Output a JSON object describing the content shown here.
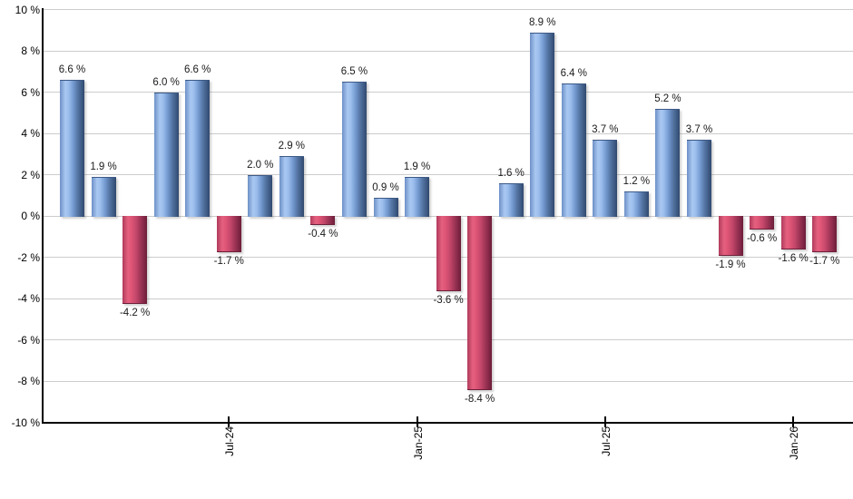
{
  "chart_data": {
    "type": "bar",
    "title": "",
    "xlabel": "",
    "ylabel": "",
    "ylim": [
      -10,
      10
    ],
    "y_step": 2,
    "grid": true,
    "legend": "none",
    "values": [
      6.6,
      1.9,
      -4.2,
      6.0,
      6.6,
      -1.7,
      2.0,
      2.9,
      -0.4,
      6.5,
      0.9,
      1.9,
      -3.6,
      -8.4,
      1.6,
      8.9,
      6.4,
      3.7,
      1.2,
      5.2,
      3.7,
      -1.9,
      -0.6,
      -1.6,
      -1.7
    ],
    "value_labels": [
      "6.6 %",
      "1.9 %",
      "-4.2 %",
      "6.0 %",
      "6.6 %",
      "-1.7 %",
      "2.0 %",
      "2.9 %",
      "-0.4 %",
      "6.5 %",
      "0.9 %",
      "1.9 %",
      "-3.6 %",
      "-8.4 %",
      "1.6 %",
      "8.9 %",
      "6.4 %",
      "3.7 %",
      "1.2 %",
      "5.2 %",
      "3.7 %",
      "-1.9 %",
      "-0.6 %",
      "-1.6 %",
      "-1.7 %"
    ],
    "x_tick_labels": [
      {
        "index": 5,
        "label": "Jul-24"
      },
      {
        "index": 11,
        "label": "Jan-25"
      },
      {
        "index": 17,
        "label": "Jul-25"
      },
      {
        "index": 23,
        "label": "Jan-26"
      }
    ],
    "y_tick_labels": [
      "10 %",
      "8 %",
      "6 %",
      "4 %",
      "2 %",
      "0 %",
      "-2 %",
      "-4 %",
      "-6 %",
      "-8 %",
      "-10 %"
    ],
    "colors": {
      "positive_bar": "#7FA3D6",
      "negative_bar": "#C84A6C",
      "grid_line": "#CCCCCC",
      "axis_line": "#000000",
      "label_text": "#1A1A1A"
    }
  }
}
